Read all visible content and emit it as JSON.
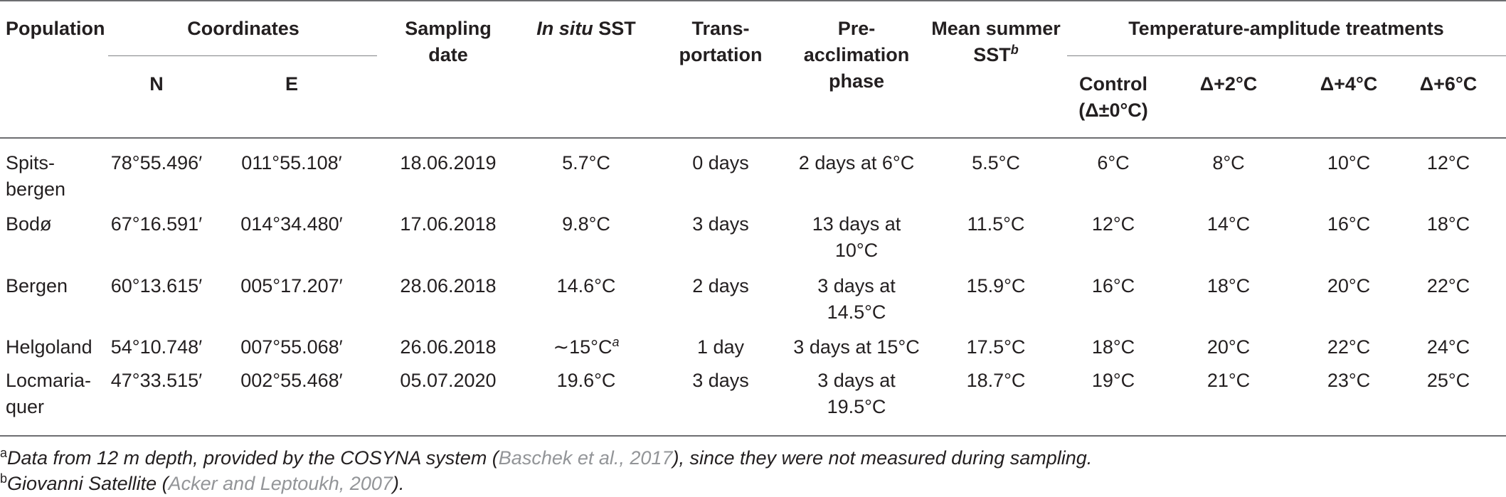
{
  "headers": {
    "population": "Population",
    "coordinates": "Coordinates",
    "n": "N",
    "e": "E",
    "sampling_date_line1": "Sampling",
    "sampling_date_line2": "date",
    "insitu_italic": "In situ",
    "insitu_rest": " SST",
    "transportation_line1": "Trans-",
    "transportation_line2": "portation",
    "preacclimation_line1": "Pre-",
    "preacclimation_line2": "acclimation",
    "preacclimation_line3": "phase",
    "mean_summer_line1": "Mean summer",
    "mean_summer_line2": "SST",
    "mean_summer_sup": "b",
    "treatments": "Temperature-amplitude treatments",
    "control_line1": "Control",
    "control_line2": "(Δ±0°C)",
    "delta2": "Δ+2°C",
    "delta4": "Δ+4°C",
    "delta6": "Δ+6°C"
  },
  "rows": [
    {
      "population": [
        "Spits-",
        "bergen"
      ],
      "n": "78°55.496′",
      "e": "011°55.108′",
      "date": "18.06.2019",
      "insitu": "5.7°C",
      "insitu_sup": "",
      "transport": "0 days",
      "preacc": [
        "2 days at 6°C"
      ],
      "mean": "5.5°C",
      "control": "6°C",
      "d2": "8°C",
      "d4": "10°C",
      "d6": "12°C"
    },
    {
      "population": [
        "Bodø"
      ],
      "n": "67°16.591′",
      "e": "014°34.480′",
      "date": "17.06.2018",
      "insitu": "9.8°C",
      "insitu_sup": "",
      "transport": "3 days",
      "preacc": [
        "13 days at",
        "10°C"
      ],
      "mean": "11.5°C",
      "control": "12°C",
      "d2": "14°C",
      "d4": "16°C",
      "d6": "18°C"
    },
    {
      "population": [
        "Bergen"
      ],
      "n": "60°13.615′",
      "e": "005°17.207′",
      "date": "28.06.2018",
      "insitu": "14.6°C",
      "insitu_sup": "",
      "transport": "2 days",
      "preacc": [
        "3 days at",
        "14.5°C"
      ],
      "mean": "15.9°C",
      "control": "16°C",
      "d2": "18°C",
      "d4": "20°C",
      "d6": "22°C"
    },
    {
      "population": [
        "Helgoland"
      ],
      "n": "54°10.748′",
      "e": "007°55.068′",
      "date": "26.06.2018",
      "insitu": "∼15°C",
      "insitu_sup": "a",
      "transport": "1 day",
      "preacc": [
        "3 days at 15°C"
      ],
      "mean": "17.5°C",
      "control": "18°C",
      "d2": "20°C",
      "d4": "22°C",
      "d6": "24°C"
    },
    {
      "population": [
        "Locmaria-",
        "quer"
      ],
      "n": "47°33.515′",
      "e": "002°55.468′",
      "date": "05.07.2020",
      "insitu": "19.6°C",
      "insitu_sup": "",
      "transport": "3 days",
      "preacc": [
        "3 days at",
        "19.5°C"
      ],
      "mean": "18.7°C",
      "control": "19°C",
      "d2": "21°C",
      "d4": "23°C",
      "d6": "25°C"
    }
  ],
  "footnotes": {
    "a_marker": "a",
    "a_text_before": "Data from 12 m depth, provided by the COSYNA system (",
    "a_cite": "Baschek et al., 2017",
    "a_text_after": "), since they were not measured during sampling.",
    "b_marker": "b",
    "b_text_before": "Giovanni Satellite (",
    "b_cite": "Acker and Leptoukh, 2007",
    "b_text_after": ")."
  }
}
